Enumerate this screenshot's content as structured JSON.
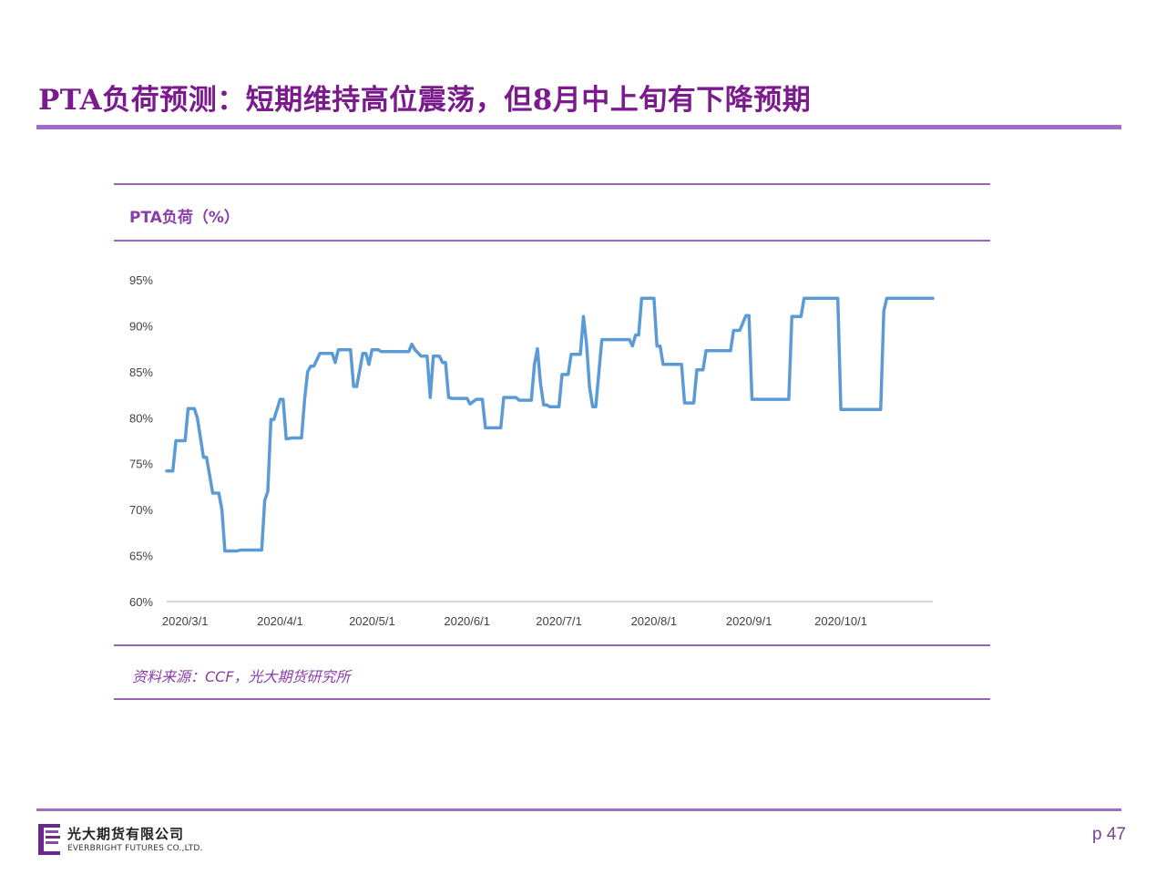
{
  "page": {
    "title": "PTA负荷预测：短期维持高位震荡，但8月中上旬有下降预期",
    "source": "资料来源：CCF，光大期货研究所",
    "company_cn": "光大期货有限公司",
    "company_en": "EVERBRIGHT FUTURES CO.,LTD.",
    "page_number": "p 47",
    "colors": {
      "accent": "#7a1a8c",
      "rule": "#a36cc4",
      "line": "#5b9bd5"
    }
  },
  "chart_data": {
    "type": "line",
    "title": "PTA负荷（%）",
    "xlabel": "",
    "ylabel": "",
    "y_unit": "%",
    "ylim": [
      60,
      95
    ],
    "y_ticks": [
      60,
      65,
      70,
      75,
      80,
      85,
      90,
      95
    ],
    "y_tick_labels": [
      "60%",
      "65%",
      "70%",
      "75%",
      "80%",
      "85%",
      "90%",
      "95%"
    ],
    "xlim": [
      "2020-02-24",
      "2020-10-31"
    ],
    "x_ticks": [
      "2020-03-01",
      "2020-04-01",
      "2020-05-01",
      "2020-06-01",
      "2020-07-01",
      "2020-08-01",
      "2020-09-01",
      "2020-10-01"
    ],
    "x_tick_labels": [
      "2020/3/1",
      "2020/4/1",
      "2020/5/1",
      "2020/6/1",
      "2020/7/1",
      "2020/8/1",
      "2020/9/1",
      "2020/10/1"
    ],
    "grid": false,
    "legend": "none",
    "series": [
      {
        "color": "#5b9bd5",
        "points": [
          [
            "2020-02-24",
            74.2
          ],
          [
            "2020-02-26",
            74.2
          ],
          [
            "2020-02-27",
            77.5
          ],
          [
            "2020-03-01",
            77.5
          ],
          [
            "2020-03-02",
            81.0
          ],
          [
            "2020-03-04",
            81.0
          ],
          [
            "2020-03-05",
            80.0
          ],
          [
            "2020-03-07",
            75.7
          ],
          [
            "2020-03-08",
            75.7
          ],
          [
            "2020-03-10",
            71.8
          ],
          [
            "2020-03-12",
            71.8
          ],
          [
            "2020-03-13",
            70.0
          ],
          [
            "2020-03-14",
            65.5
          ],
          [
            "2020-03-18",
            65.5
          ],
          [
            "2020-03-19",
            65.6
          ],
          [
            "2020-03-26",
            65.6
          ],
          [
            "2020-03-27",
            71.0
          ],
          [
            "2020-03-28",
            72.0
          ],
          [
            "2020-03-29",
            79.8
          ],
          [
            "2020-03-30",
            79.8
          ],
          [
            "2020-04-01",
            82.0
          ],
          [
            "2020-04-02",
            82.0
          ],
          [
            "2020-04-03",
            77.7
          ],
          [
            "2020-04-05",
            77.8
          ],
          [
            "2020-04-08",
            77.8
          ],
          [
            "2020-04-09",
            82.0
          ],
          [
            "2020-04-10",
            85.0
          ],
          [
            "2020-04-11",
            85.6
          ],
          [
            "2020-04-12",
            85.6
          ],
          [
            "2020-04-14",
            87.0
          ],
          [
            "2020-04-18",
            87.0
          ],
          [
            "2020-04-19",
            86.0
          ],
          [
            "2020-04-20",
            87.4
          ],
          [
            "2020-04-24",
            87.4
          ],
          [
            "2020-04-25",
            83.4
          ],
          [
            "2020-04-26",
            83.4
          ],
          [
            "2020-04-28",
            87.0
          ],
          [
            "2020-04-29",
            87.0
          ],
          [
            "2020-04-30",
            85.8
          ],
          [
            "2020-05-01",
            87.4
          ],
          [
            "2020-05-03",
            87.4
          ],
          [
            "2020-05-04",
            87.2
          ],
          [
            "2020-05-13",
            87.2
          ],
          [
            "2020-05-14",
            88.0
          ],
          [
            "2020-05-15",
            87.4
          ],
          [
            "2020-05-17",
            86.7
          ],
          [
            "2020-05-19",
            86.7
          ],
          [
            "2020-05-20",
            82.2
          ],
          [
            "2020-05-21",
            86.7
          ],
          [
            "2020-05-23",
            86.7
          ],
          [
            "2020-05-24",
            86.0
          ],
          [
            "2020-05-25",
            86.0
          ],
          [
            "2020-05-26",
            82.2
          ],
          [
            "2020-05-27",
            82.1
          ],
          [
            "2020-06-01",
            82.1
          ],
          [
            "2020-06-02",
            81.5
          ],
          [
            "2020-06-04",
            82.0
          ],
          [
            "2020-06-06",
            82.0
          ],
          [
            "2020-06-07",
            78.9
          ],
          [
            "2020-06-12",
            78.9
          ],
          [
            "2020-06-13",
            82.2
          ],
          [
            "2020-06-17",
            82.2
          ],
          [
            "2020-06-18",
            81.9
          ],
          [
            "2020-06-22",
            81.9
          ],
          [
            "2020-06-23",
            85.8
          ],
          [
            "2020-06-24",
            87.5
          ],
          [
            "2020-06-25",
            83.7
          ],
          [
            "2020-06-26",
            81.4
          ],
          [
            "2020-06-27",
            81.4
          ],
          [
            "2020-06-28",
            81.2
          ],
          [
            "2020-07-01",
            81.2
          ],
          [
            "2020-07-02",
            84.7
          ],
          [
            "2020-07-04",
            84.7
          ],
          [
            "2020-07-05",
            86.9
          ],
          [
            "2020-07-08",
            86.9
          ],
          [
            "2020-07-09",
            91.0
          ],
          [
            "2020-07-10",
            88.0
          ],
          [
            "2020-07-11",
            83.3
          ],
          [
            "2020-07-12",
            81.2
          ],
          [
            "2020-07-13",
            81.2
          ],
          [
            "2020-07-15",
            88.5
          ],
          [
            "2020-07-24",
            88.5
          ],
          [
            "2020-07-25",
            87.8
          ],
          [
            "2020-07-26",
            89.0
          ],
          [
            "2020-07-27",
            89.0
          ],
          [
            "2020-07-28",
            93.0
          ],
          [
            "2020-08-01",
            93.0
          ],
          [
            "2020-08-02",
            87.8
          ],
          [
            "2020-08-03",
            87.8
          ],
          [
            "2020-08-04",
            85.8
          ],
          [
            "2020-08-10",
            85.8
          ],
          [
            "2020-08-11",
            81.6
          ],
          [
            "2020-08-14",
            81.6
          ],
          [
            "2020-08-15",
            85.2
          ],
          [
            "2020-08-17",
            85.2
          ],
          [
            "2020-08-18",
            87.3
          ],
          [
            "2020-08-26",
            87.3
          ],
          [
            "2020-08-27",
            89.5
          ],
          [
            "2020-08-29",
            89.5
          ],
          [
            "2020-08-31",
            91.1
          ],
          [
            "2020-09-01",
            91.1
          ],
          [
            "2020-09-02",
            82.0
          ],
          [
            "2020-09-14",
            82.0
          ],
          [
            "2020-09-15",
            91.0
          ],
          [
            "2020-09-18",
            91.0
          ],
          [
            "2020-09-19",
            93.0
          ],
          [
            "2020-09-30",
            93.0
          ],
          [
            "2020-10-01",
            80.9
          ],
          [
            "2020-10-14",
            80.9
          ],
          [
            "2020-10-15",
            91.6
          ],
          [
            "2020-10-16",
            93.0
          ],
          [
            "2020-10-31",
            93.0
          ]
        ]
      }
    ]
  }
}
